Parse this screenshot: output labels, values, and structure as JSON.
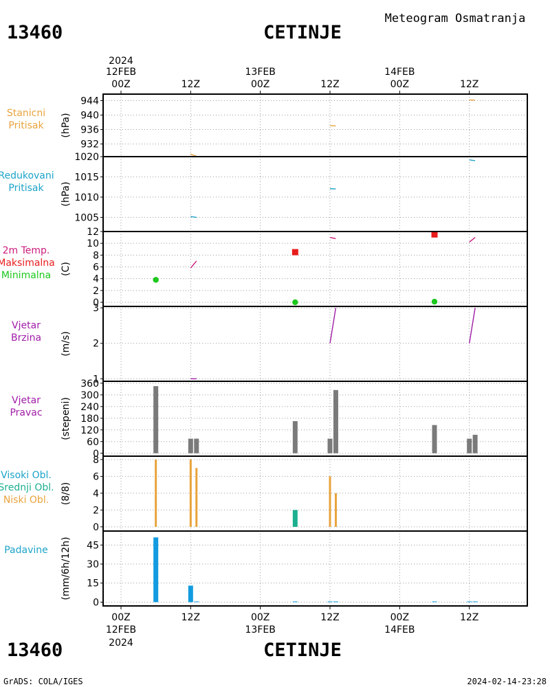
{
  "header": {
    "station_id": "13460",
    "station_name": "CETINJE",
    "product": "Meteogram Osmatranja"
  },
  "footer": {
    "software": "GrADS: COLA/IGES",
    "timestamp": "2024-02-14-23:28"
  },
  "top_axis": {
    "year": "2024",
    "ticks": [
      {
        "t": 0,
        "date": "12FEB",
        "time": "00Z"
      },
      {
        "t": 12,
        "date": "",
        "time": "12Z"
      },
      {
        "t": 24,
        "date": "13FEB",
        "time": "00Z"
      },
      {
        "t": 36,
        "date": "",
        "time": "12Z"
      },
      {
        "t": 48,
        "date": "14FEB",
        "time": "00Z"
      },
      {
        "t": 60,
        "date": "",
        "time": "12Z"
      }
    ]
  },
  "bottom_axis": {
    "year": "2024",
    "ticks": [
      {
        "t": 0,
        "date": "12FEB",
        "time": "00Z"
      },
      {
        "t": 12,
        "date": "",
        "time": "12Z"
      },
      {
        "t": 24,
        "date": "13FEB",
        "time": "00Z"
      },
      {
        "t": 36,
        "date": "",
        "time": "12Z"
      },
      {
        "t": 48,
        "date": "14FEB",
        "time": "00Z"
      },
      {
        "t": 60,
        "date": "",
        "time": "12Z"
      }
    ]
  },
  "chart_data": [
    {
      "type": "line",
      "title_lines": [
        "Stanicni",
        "Pritisak"
      ],
      "title_colors": [
        "#e8a33c",
        "#e8a33c"
      ],
      "ylabel": "(hPa)",
      "ylim": [
        928.5,
        945.8
      ],
      "yticks": [
        932,
        936,
        940,
        944
      ],
      "series": [
        {
          "name": "Stanicni Pritisak",
          "color": "#e8a33c",
          "segments": [
            [
              [
                12.0,
                929.2
              ],
              [
                13.0,
                928.6
              ]
            ],
            [
              [
                36.0,
                937.1
              ],
              [
                37.0,
                937.0
              ]
            ],
            [
              [
                60.0,
                944.2
              ],
              [
                61.0,
                944.1
              ]
            ]
          ]
        }
      ]
    },
    {
      "type": "line",
      "title_lines": [
        "Redukovani",
        "Pritisak"
      ],
      "title_colors": [
        "#1ca3c8",
        "#1ca3c8"
      ],
      "ylabel": "(hPa)",
      "ylim": [
        1001.5,
        1020.0
      ],
      "yticks": [
        1005,
        1010,
        1015,
        1020
      ],
      "series": [
        {
          "name": "Redukovani Pritisak",
          "color": "#1ca3c8",
          "segments": [
            [
              [
                12.0,
                1005.2
              ],
              [
                13.0,
                1005.0
              ]
            ],
            [
              [
                36.0,
                1012.1
              ],
              [
                37.0,
                1012.0
              ]
            ],
            [
              [
                60.0,
                1019.2
              ],
              [
                61.0,
                1019.0
              ]
            ]
          ]
        }
      ]
    },
    {
      "type": "line+scatter",
      "title_lines": [
        "2m Temp.",
        "Maksimalna",
        "Minimalna"
      ],
      "title_colors": [
        "#cc1c7c",
        "#e81c1c",
        "#1cc81c"
      ],
      "ylabel": "(C)",
      "ylim": [
        -0.7,
        12.0
      ],
      "yticks": [
        0,
        2,
        4,
        6,
        8,
        10,
        12
      ],
      "series": [
        {
          "name": "2m Temp.",
          "color": "#cc1c7c",
          "segments": [
            [
              [
                12.0,
                5.8
              ],
              [
                13.0,
                7.0
              ]
            ],
            [
              [
                36.0,
                11.0
              ],
              [
                37.0,
                10.8
              ]
            ],
            [
              [
                60.0,
                10.2
              ],
              [
                61.0,
                11.0
              ]
            ]
          ]
        },
        {
          "name": "Maksimalna",
          "color": "#e81c1c",
          "marker": "square",
          "points": [
            [
              30.0,
              8.5
            ],
            [
              54.0,
              11.5
            ]
          ]
        },
        {
          "name": "Minimalna",
          "color": "#1cc81c",
          "marker": "circle",
          "points": [
            [
              6.0,
              3.8
            ],
            [
              30.0,
              0.0
            ],
            [
              54.0,
              0.1
            ]
          ]
        }
      ]
    },
    {
      "type": "line",
      "title_lines": [
        "Vjetar",
        "Brzina"
      ],
      "title_colors": [
        "#a01ca8",
        "#a01ca8"
      ],
      "ylabel": "(m/s)",
      "ylim": [
        0.93,
        3.04
      ],
      "yticks": [
        1,
        2,
        3
      ],
      "series": [
        {
          "name": "Vjetar Brzina",
          "color": "#a01ca8",
          "segments": [
            [
              [
                12.0,
                1.0
              ],
              [
                13.0,
                1.0
              ]
            ],
            [
              [
                36.0,
                2.0
              ],
              [
                37.0,
                3.0
              ]
            ],
            [
              [
                60.0,
                2.0
              ],
              [
                61.0,
                3.0
              ]
            ]
          ]
        }
      ]
    },
    {
      "type": "bar",
      "title_lines": [
        "Vjetar",
        "Pravac"
      ],
      "title_colors": [
        "#a01ca8",
        "#a01ca8"
      ],
      "ylabel": "(stepeni)",
      "ylim": [
        -15,
        370
      ],
      "yticks": [
        0,
        60,
        120,
        180,
        240,
        300,
        360
      ],
      "ytick_labels": [
        "0",
        "60",
        "120",
        "180",
        "240",
        "300",
        "360"
      ],
      "series": [
        {
          "name": "Vjetar Pravac",
          "color": "#7a7a7a",
          "bars": [
            {
              "t": 6.0,
              "value": 345
            },
            {
              "t": 12.0,
              "value": 75
            },
            {
              "t": 13.0,
              "value": 75
            },
            {
              "t": 30.0,
              "value": 165
            },
            {
              "t": 36.0,
              "value": 75
            },
            {
              "t": 37.0,
              "value": 325
            },
            {
              "t": 54.0,
              "value": 145
            },
            {
              "t": 60.0,
              "value": 75
            },
            {
              "t": 61.0,
              "value": 95
            }
          ]
        }
      ]
    },
    {
      "type": "bar",
      "title_lines": [
        "Visoki Obl.",
        "Srednji Obl.",
        "Niski Obl."
      ],
      "title_colors": [
        "#1ca3c8",
        "#1cb090",
        "#e8a33c"
      ],
      "ylabel": "(8/8)",
      "ylim": [
        -0.5,
        8.4
      ],
      "yticks": [
        0,
        2,
        4,
        6,
        8
      ],
      "series": [
        {
          "name": "Niski Obl.",
          "color": "#e8a33c",
          "bars": [
            {
              "t": 6.0,
              "value": 8
            },
            {
              "t": 12.0,
              "value": 8
            },
            {
              "t": 13.0,
              "value": 7
            },
            {
              "t": 36.0,
              "value": 6
            },
            {
              "t": 37.0,
              "value": 4
            }
          ]
        },
        {
          "name": "Srednji Obl.",
          "color": "#1cb090",
          "bars": [
            {
              "t": 30.0,
              "value": 2
            }
          ]
        }
      ]
    },
    {
      "type": "bar",
      "title_lines": [
        "Padavine"
      ],
      "title_colors": [
        "#1ca3c8"
      ],
      "ylabel": "(mm/6h/12h)",
      "ylim": [
        -3,
        56
      ],
      "yticks": [
        0,
        15,
        30,
        45
      ],
      "series": [
        {
          "name": "Padavine",
          "color": "#129be0",
          "bars": [
            {
              "t": 6.0,
              "value": 51
            },
            {
              "t": 12.0,
              "value": 13
            },
            {
              "t": 13.0,
              "value": 0.4
            },
            {
              "t": 30.0,
              "value": 0.4
            },
            {
              "t": 36.0,
              "value": 0.4
            },
            {
              "t": 37.0,
              "value": 0.4
            },
            {
              "t": 54.0,
              "value": 0.4
            },
            {
              "t": 60.0,
              "value": 0.4
            },
            {
              "t": 61.0,
              "value": 0.4
            }
          ]
        }
      ]
    }
  ]
}
